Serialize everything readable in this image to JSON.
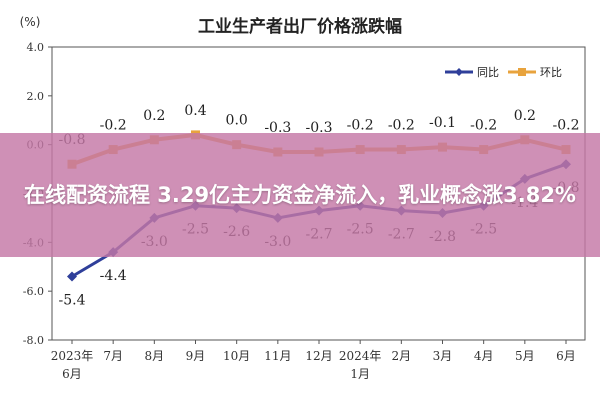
{
  "chart_data": {
    "type": "line",
    "title": "工业生产者出厂价格涨跌幅",
    "ylabel": "(%)",
    "ylim": [
      -8.0,
      4.0
    ],
    "y_ticks": [
      "4.0",
      "2.0",
      "0.0",
      "-2.0",
      "-4.0",
      "-6.0",
      "-8.0"
    ],
    "categories": [
      [
        "2023年",
        "6月"
      ],
      [
        "7月"
      ],
      [
        "8月"
      ],
      [
        "9月"
      ],
      [
        "10月"
      ],
      [
        "11月"
      ],
      [
        "12月"
      ],
      [
        "2024年",
        "1月"
      ],
      [
        "2月"
      ],
      [
        "3月"
      ],
      [
        "4月"
      ],
      [
        "5月"
      ],
      [
        "6月"
      ]
    ],
    "series": [
      {
        "name": "同比",
        "color": "#2f3f9a",
        "values": [
          -5.4,
          -4.4,
          -3.0,
          -2.5,
          -2.6,
          -3.0,
          -2.7,
          -2.5,
          -2.7,
          -2.8,
          -2.5,
          -1.4,
          -0.8
        ],
        "labels": [
          "-5.4",
          "-4.4",
          "-3.0",
          "-2.5",
          "-2.6",
          "-3.0",
          "-2.7",
          "-2.5",
          "-2.7",
          "-2.8",
          "-2.5",
          "-1.4",
          "-0.8"
        ]
      },
      {
        "name": "环比",
        "color": "#e8a33d",
        "values": [
          -0.8,
          -0.2,
          0.2,
          0.4,
          0.0,
          -0.3,
          -0.3,
          -0.2,
          -0.2,
          -0.1,
          -0.2,
          0.2,
          -0.2
        ],
        "labels": [
          "-0.8",
          "-0.2",
          "0.2",
          "0.4",
          "0.0",
          "-0.3",
          "-0.3",
          "-0.2",
          "-0.2",
          "-0.1",
          "-0.2",
          "0.2",
          "-0.2"
        ]
      }
    ],
    "legend_position": "top-right",
    "grid": false
  },
  "overlay": {
    "headline": "在线配资流程 3.29亿主力资金净流入，乳业概念涨3.82%",
    "background_color": "#c478a6"
  }
}
